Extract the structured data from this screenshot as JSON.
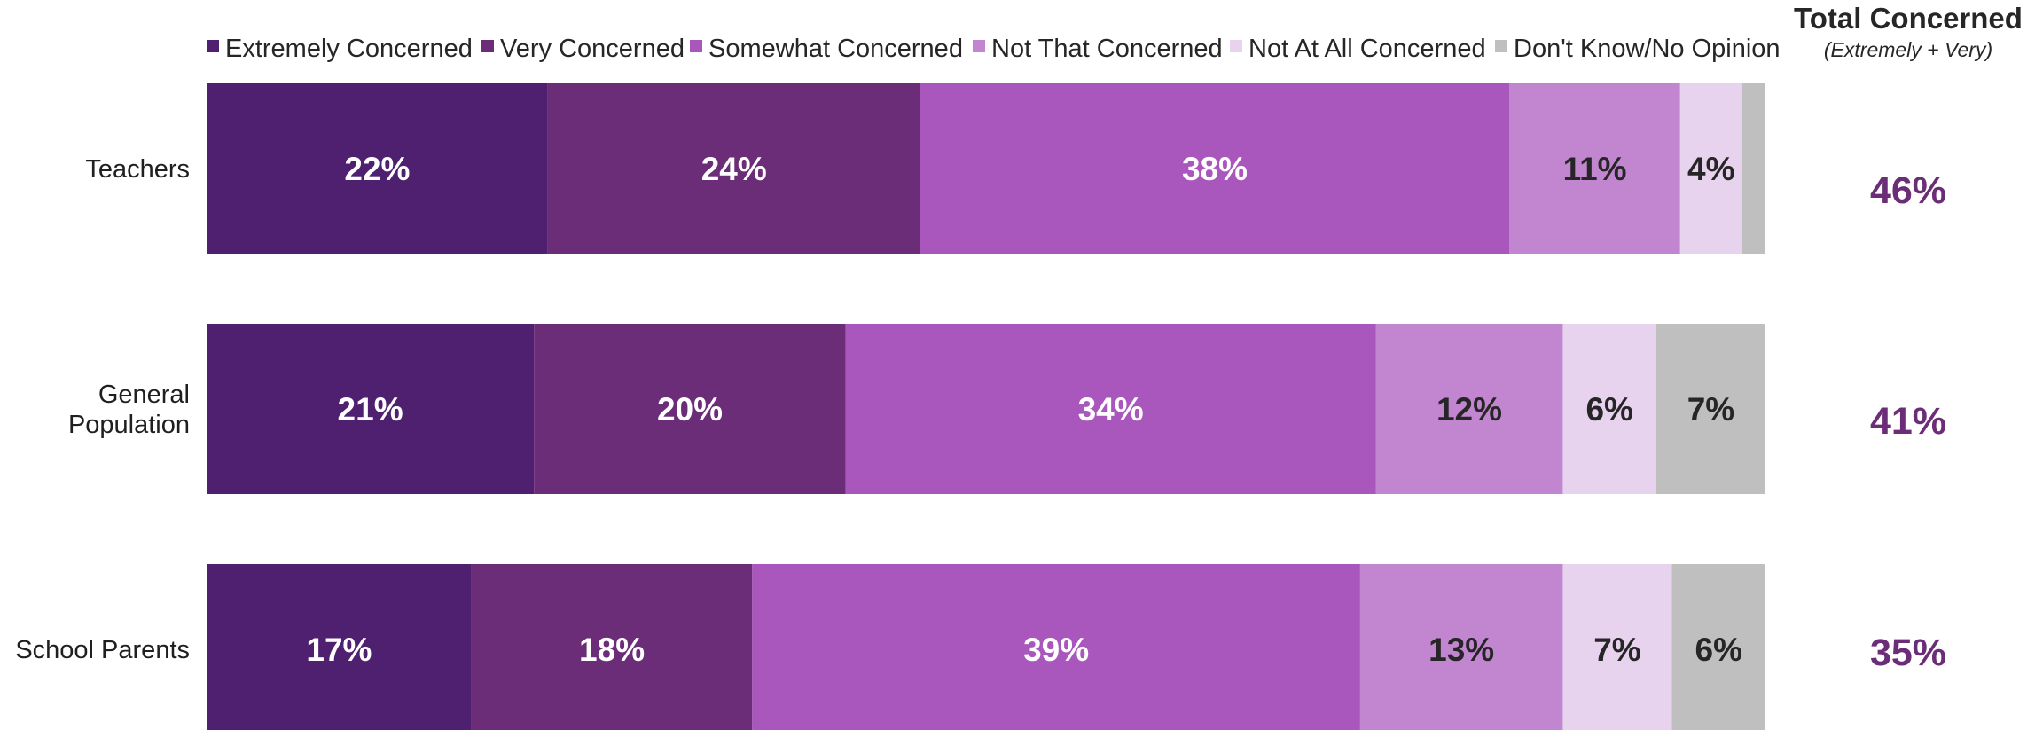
{
  "chart_data": {
    "type": "bar",
    "orientation": "horizontal",
    "stacked": true,
    "categories": [
      "Teachers",
      "General\nPopulation",
      "School Parents"
    ],
    "series": [
      {
        "name": "Extremely Concerned",
        "values": [
          22,
          21,
          17
        ],
        "color": "#4f1f70",
        "label_color": "#ffffff"
      },
      {
        "name": "Very Concerned",
        "values": [
          24,
          20,
          18
        ],
        "color": "#6b2d77",
        "label_color": "#ffffff"
      },
      {
        "name": "Somewhat Concerned",
        "values": [
          38,
          34,
          39
        ],
        "color": "#a957bd",
        "label_color": "#ffffff"
      },
      {
        "name": "Not That Concerned",
        "values": [
          11,
          12,
          13
        ],
        "color": "#c286d1",
        "label_color": "#262626"
      },
      {
        "name": "Not At All Concerned",
        "values": [
          4,
          6,
          7
        ],
        "color": "#e8d3ee",
        "label_color": "#262626"
      },
      {
        "name": "Don't Know/No Opinion",
        "values": [
          1.5,
          7,
          6
        ],
        "color": "#bfbfbf",
        "label_color": "#262626"
      }
    ],
    "data_labels": [
      [
        "22%",
        "24%",
        "38%",
        "11%",
        "4%",
        ""
      ],
      [
        "21%",
        "20%",
        "34%",
        "12%",
        "6%",
        "7%"
      ],
      [
        "17%",
        "18%",
        "39%",
        "13%",
        "7%",
        "6%"
      ]
    ],
    "legend_position": "top",
    "grid": false,
    "total_column": {
      "title": "Total Concerned",
      "subtitle": "(Extremely + Very)",
      "values": [
        "46%",
        "41%",
        "35%"
      ],
      "color": "#6b2d77"
    }
  }
}
